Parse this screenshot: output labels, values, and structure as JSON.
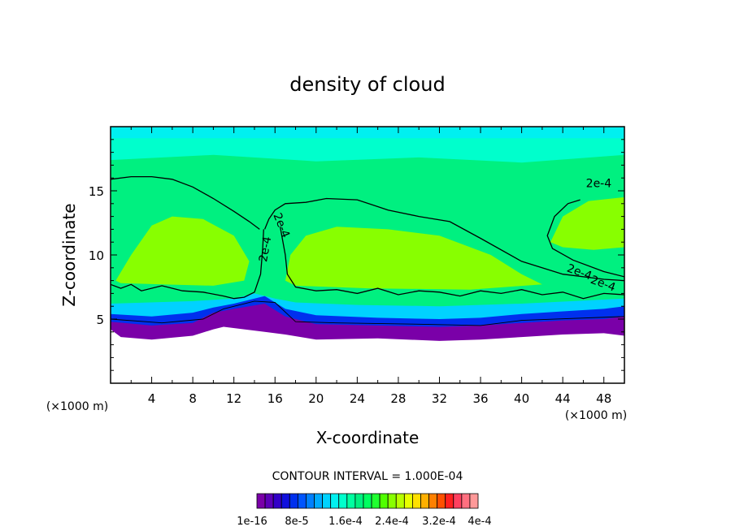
{
  "chart_data": {
    "type": "heatmap",
    "title": "density of cloud",
    "xlabel": "X-coordinate",
    "ylabel": "Z-coordinate",
    "x_unit": "(×1000 m)",
    "z_unit": "(×1000 m)",
    "xlim": [
      0,
      50
    ],
    "ylim": [
      0,
      20
    ],
    "x_ticks": [
      4,
      8,
      12,
      16,
      20,
      24,
      28,
      32,
      36,
      40,
      44,
      48
    ],
    "y_ticks": [
      5,
      10,
      15
    ],
    "contour_interval_text": "CONTOUR INTERVAL = 1.000E-04",
    "contour_labels": [
      "2e-4",
      "2e-4",
      "2e-4",
      "2e-4",
      "2e-4"
    ],
    "colorbar": {
      "tick_labels": [
        "1e-16",
        "8e-5",
        "1.6e-4",
        "2.4e-4",
        "3.2e-4",
        "4e-4"
      ],
      "colors": [
        "#7a00a8",
        "#5c00b8",
        "#3300c8",
        "#1010dd",
        "#0030ee",
        "#0055ff",
        "#0080ff",
        "#00aaff",
        "#00d2ff",
        "#00f0f0",
        "#00ffcc",
        "#00ffa0",
        "#00f080",
        "#00ff60",
        "#20ff30",
        "#50ff00",
        "#88ff00",
        "#b8ff00",
        "#e8ff00",
        "#ffe000",
        "#ffb000",
        "#ff8000",
        "#ff5000",
        "#ff2020",
        "#ff4060",
        "#ff7080",
        "#ff9999"
      ]
    },
    "regions": {
      "top_band": "#00ffcc",
      "mid_band": "#00f080",
      "core": "#88ff00",
      "lower_band": "#00d2ff",
      "base": "#0030ee",
      "bottom": "#7a00a8"
    }
  }
}
